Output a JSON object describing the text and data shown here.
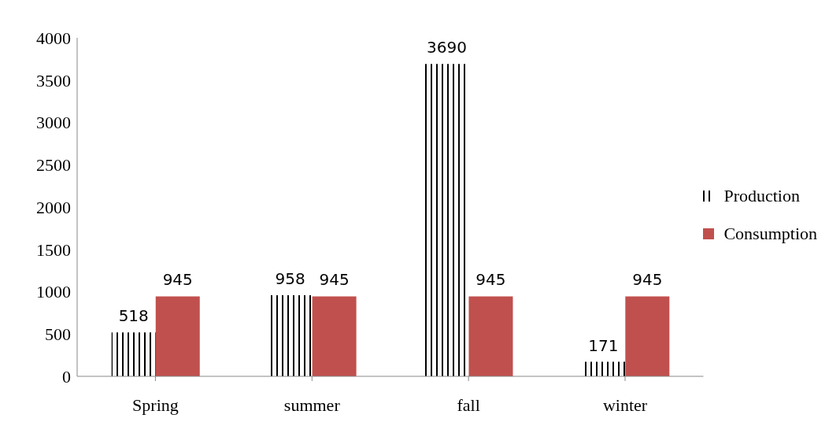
{
  "chart_data": {
    "type": "bar",
    "categories": [
      "Spring",
      "summer",
      "fall",
      "winter"
    ],
    "series": [
      {
        "name": "Production",
        "color": "#000000",
        "values": [
          518,
          958,
          3690,
          171
        ]
      },
      {
        "name": "Consumption",
        "color": "#c0504d",
        "values": [
          945,
          945,
          945,
          945
        ]
      }
    ],
    "ylim": [
      0,
      4000
    ],
    "yticks": [
      0,
      500,
      1000,
      1500,
      2000,
      2500,
      3000,
      3500,
      4000
    ],
    "legend": "right",
    "data_labels": true
  }
}
